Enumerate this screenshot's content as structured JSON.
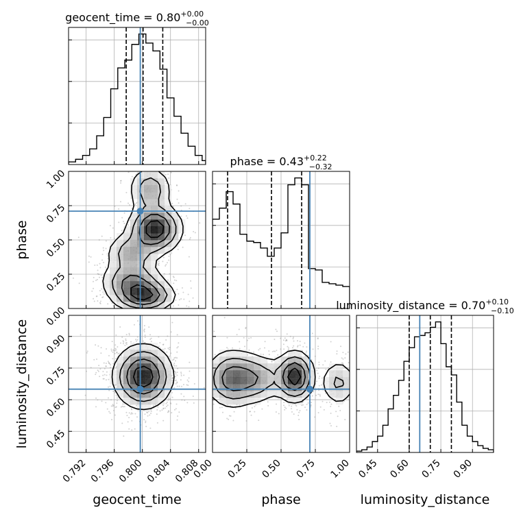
{
  "chart_data": {
    "type": "corner",
    "parameters": [
      {
        "name": "geocent_time",
        "axis_label": "geocent_time",
        "title_prefix": "geocent_time = ",
        "median": "0.80",
        "err_plus": "+0.00",
        "err_minus": "−0.00",
        "range": [
          0.7895,
          0.809
        ],
        "ticks": [
          0.792,
          0.796,
          0.8,
          0.804,
          0.808
        ],
        "tick_labels": [
          "0.792",
          "0.796",
          "0.800",
          "0.804",
          "0.808"
        ],
        "truth": 0.7997,
        "quantiles": [
          0.7977,
          0.8001,
          0.8029
        ],
        "hist_bins": [
          0.7895,
          0.7905,
          0.7915,
          0.7925,
          0.7935,
          0.7945,
          0.7955,
          0.7965,
          0.7975,
          0.7985,
          0.7995,
          0.8005,
          0.8015,
          0.8025,
          0.8035,
          0.8045,
          0.8055,
          0.8065,
          0.8075,
          0.8085,
          0.809
        ],
        "hist_counts": [
          0.02,
          0.04,
          0.07,
          0.12,
          0.22,
          0.36,
          0.58,
          0.74,
          0.8,
          0.92,
          1.0,
          0.93,
          0.87,
          0.73,
          0.51,
          0.37,
          0.24,
          0.14,
          0.07,
          0.03
        ]
      },
      {
        "name": "phase",
        "axis_label": "phase",
        "title_prefix": "phase = ",
        "median": "0.43",
        "err_plus": "+0.22",
        "err_minus": "−0.32",
        "range": [
          0.0,
          1.0
        ],
        "ticks": [
          0.0,
          0.25,
          0.5,
          0.75,
          1.0
        ],
        "tick_labels": [
          "0.00",
          "0.25",
          "0.50",
          "0.75",
          "1.00"
        ],
        "truth": 0.71,
        "quantiles": [
          0.11,
          0.43,
          0.65
        ],
        "hist_bins": [
          0.0,
          0.05,
          0.1,
          0.15,
          0.2,
          0.25,
          0.3,
          0.35,
          0.4,
          0.45,
          0.5,
          0.55,
          0.6,
          0.65,
          0.7,
          0.75,
          0.8,
          0.85,
          0.9,
          0.95,
          1.0
        ],
        "hist_counts": [
          0.65,
          0.73,
          0.85,
          0.76,
          0.54,
          0.49,
          0.48,
          0.44,
          0.38,
          0.44,
          0.55,
          0.9,
          0.95,
          0.9,
          0.29,
          0.28,
          0.19,
          0.18,
          0.17,
          0.16
        ]
      },
      {
        "name": "luminosity_distance",
        "axis_label": "luminosity_distance",
        "title_prefix": "luminosity_distance = ",
        "median": "0.70",
        "err_plus": "+0.10",
        "err_minus": "−0.10",
        "range": [
          0.35,
          1.0
        ],
        "ticks": [
          0.45,
          0.6,
          0.75,
          0.9
        ],
        "tick_labels": [
          "0.45",
          "0.60",
          "0.75",
          "0.90"
        ],
        "truth": 0.65,
        "quantiles": [
          0.6,
          0.7,
          0.8
        ],
        "hist_bins": [
          0.35,
          0.375,
          0.4,
          0.425,
          0.45,
          0.475,
          0.5,
          0.525,
          0.55,
          0.575,
          0.6,
          0.625,
          0.65,
          0.675,
          0.7,
          0.725,
          0.75,
          0.775,
          0.8,
          0.825,
          0.85,
          0.875,
          0.9,
          0.925,
          0.95,
          0.975,
          1.0
        ],
        "hist_counts": [
          0.01,
          0.02,
          0.04,
          0.08,
          0.12,
          0.2,
          0.32,
          0.42,
          0.53,
          0.67,
          0.77,
          0.85,
          0.86,
          0.88,
          0.92,
          0.96,
          0.8,
          0.63,
          0.57,
          0.37,
          0.2,
          0.12,
          0.08,
          0.05,
          0.03,
          0.02
        ]
      }
    ],
    "truth_color": "#4682b4",
    "quantile_style": "dashed",
    "contour_levels": 4,
    "grid": true,
    "pairs": [
      {
        "row": 1,
        "col": 0,
        "blobs": [
          {
            "x": 0.8018,
            "y": 0.58,
            "sx": 0.0019,
            "sy": 0.09,
            "w": 1.0
          },
          {
            "x": 0.7984,
            "y": 0.4,
            "sx": 0.0019,
            "sy": 0.08,
            "w": 0.45
          },
          {
            "x": 0.7985,
            "y": 0.2,
            "sx": 0.0023,
            "sy": 0.07,
            "w": 0.55
          },
          {
            "x": 0.8002,
            "y": 0.09,
            "sx": 0.0022,
            "sy": 0.06,
            "w": 0.85
          },
          {
            "x": 0.8011,
            "y": 0.87,
            "sx": 0.0016,
            "sy": 0.09,
            "w": 0.45
          }
        ]
      },
      {
        "row": 2,
        "col": 0,
        "blobs": [
          {
            "x": 0.8001,
            "y": 0.71,
            "sx": 0.0021,
            "sy": 0.075,
            "w": 1.0
          }
        ]
      },
      {
        "row": 2,
        "col": 1,
        "blobs": [
          {
            "x": 0.6,
            "y": 0.71,
            "sx": 0.07,
            "sy": 0.06,
            "w": 1.0
          },
          {
            "x": 0.14,
            "y": 0.7,
            "sx": 0.1,
            "sy": 0.07,
            "w": 0.7
          },
          {
            "x": 0.33,
            "y": 0.7,
            "sx": 0.1,
            "sy": 0.06,
            "w": 0.45
          },
          {
            "x": 0.92,
            "y": 0.68,
            "sx": 0.07,
            "sy": 0.06,
            "w": 0.35
          }
        ]
      }
    ]
  }
}
